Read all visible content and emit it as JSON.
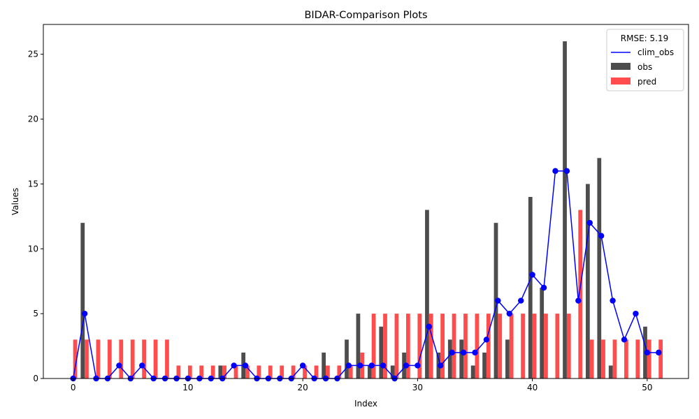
{
  "chart_data": {
    "type": "bar",
    "title": "BIDAR-Comparison Plots",
    "xlabel": "Index",
    "ylabel": "Values",
    "xlim": [
      -2.6,
      53.6
    ],
    "ylim": [
      0,
      27.3
    ],
    "xticks": [
      0,
      10,
      20,
      30,
      40,
      50
    ],
    "yticks": [
      0,
      5,
      10,
      15,
      20,
      25
    ],
    "grid": false,
    "legend": {
      "title": "RMSE: 5.19",
      "position": "top-right",
      "entries": [
        "clim_obs",
        "obs",
        "pred"
      ]
    },
    "x": [
      0,
      1,
      2,
      3,
      4,
      5,
      6,
      7,
      8,
      9,
      10,
      11,
      12,
      13,
      14,
      15,
      16,
      17,
      18,
      19,
      20,
      21,
      22,
      23,
      24,
      25,
      26,
      27,
      28,
      29,
      30,
      31,
      32,
      33,
      34,
      35,
      36,
      37,
      38,
      39,
      40,
      41,
      42,
      43,
      44,
      45,
      46,
      47,
      48,
      49,
      50,
      51
    ],
    "series": [
      {
        "name": "clim_obs",
        "kind": "line",
        "color": "#0000ff",
        "values": [
          0,
          5,
          0,
          0,
          1,
          0,
          1,
          0,
          0,
          0,
          0,
          0,
          0,
          0,
          1,
          1,
          0,
          0,
          0,
          0,
          1,
          0,
          0,
          0,
          1,
          1,
          1,
          1,
          0,
          1,
          1,
          4,
          1,
          2,
          2,
          2,
          3,
          6,
          5,
          6,
          8,
          7,
          16,
          16,
          6,
          12,
          11,
          6,
          3,
          5,
          2,
          2
        ]
      },
      {
        "name": "obs",
        "kind": "bar",
        "color": "#4d4d4d",
        "values": [
          0,
          12,
          0,
          0,
          0,
          0,
          0,
          0,
          0,
          0,
          0,
          0,
          0,
          1,
          0,
          2,
          0,
          0,
          0,
          0,
          0,
          0,
          2,
          0,
          3,
          5,
          1,
          4,
          1,
          2,
          0,
          13,
          2,
          3,
          3,
          1,
          2,
          12,
          3,
          0,
          14,
          7,
          0,
          26,
          0,
          15,
          17,
          1,
          0,
          0,
          4,
          0
        ]
      },
      {
        "name": "pred",
        "kind": "bar",
        "color": "#ff4d4d",
        "values": [
          3,
          3,
          3,
          3,
          3,
          3,
          3,
          3,
          3,
          1,
          1,
          1,
          1,
          1,
          1,
          1,
          1,
          1,
          1,
          1,
          1,
          1,
          1,
          1,
          1,
          2,
          5,
          5,
          5,
          5,
          5,
          5,
          5,
          5,
          5,
          5,
          5,
          5,
          5,
          5,
          5,
          5,
          5,
          5,
          13,
          3,
          3,
          3,
          3,
          3,
          3,
          3
        ]
      }
    ]
  }
}
